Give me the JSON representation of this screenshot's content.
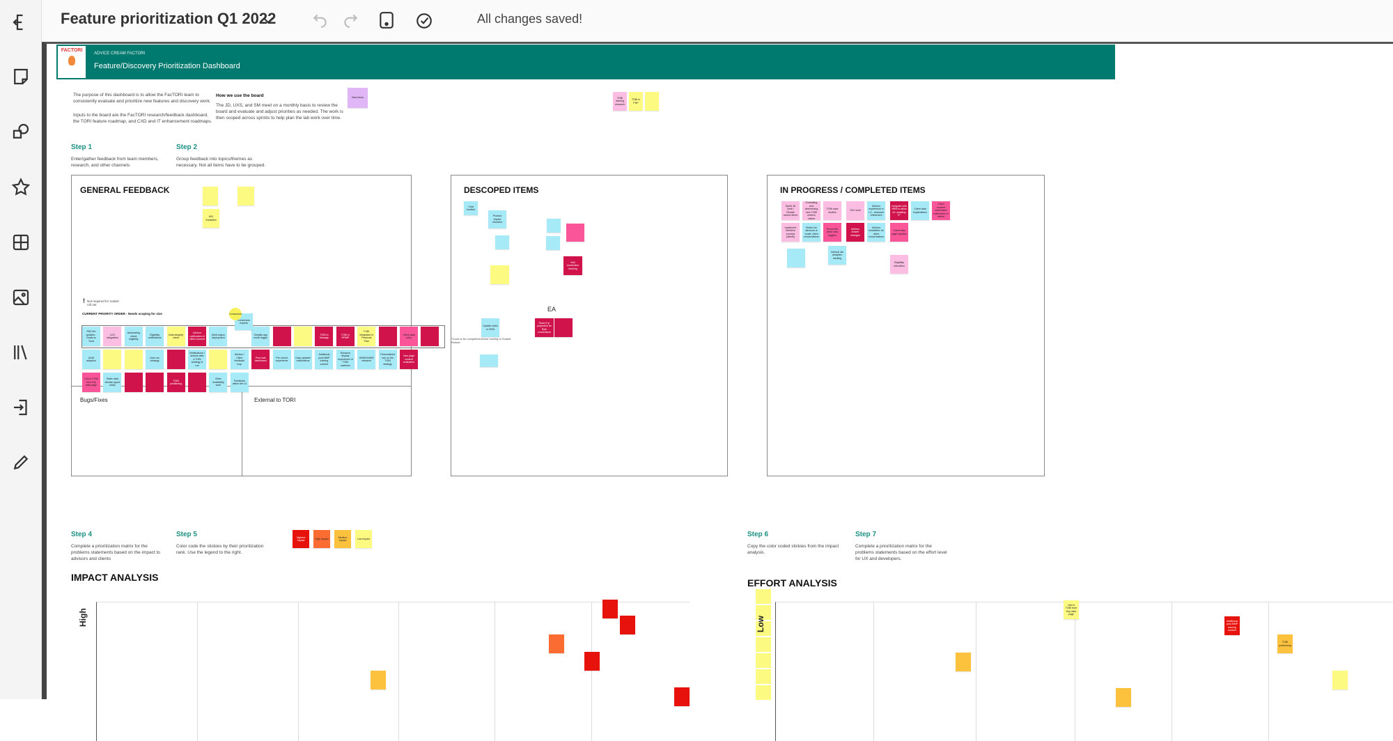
{
  "topbar": {
    "title": "Feature prioritization Q1 2022",
    "status": "All changes saved!"
  },
  "toolbar": [
    "exit-icon",
    "sticky-note-icon",
    "shapes-icon",
    "star-icon",
    "table-icon",
    "image-icon",
    "library-icon",
    "import-icon",
    "pen-icon"
  ],
  "colors": {
    "cyan": "#a6e9f7",
    "pink": "#fbbde2",
    "yellow": "#fcfa80",
    "crimson": "#d1134c",
    "hotpink": "#f95598",
    "red": "#e8120c",
    "orange": "#fa6c32",
    "amber": "#fcc13d",
    "purple": "#e0b6f7",
    "banner": "#007a6e",
    "step": "#1a8f83"
  },
  "banner": {
    "brand": "ADVICE CREAM FACTORI",
    "logo": "FACTORI",
    "title": "Feature/Discovery Prioritization Dashboard"
  },
  "intro": {
    "p1": "The purpose of this dashboard is to allow the FacTORI team to consistently evaluate and prioritize new features and discovery work.",
    "p2": "Inputs to the board are the FacTORI research/feedback dashboard, the TORI feature roadmap, and CXD and IT enhancement roadmaps.",
    "how_title": "How we use the board",
    "how_text": "The JD, UXS, and SM meet on a monthly basis to review the board and evaluate and adjust priorities as needed. The work is then scoped across sprints to help plan the lab work over time.",
    "new_items": "New items"
  },
  "top_stickies": [
    {
      "text": "TOBI training research",
      "color": "pink"
    },
    {
      "text": "TOBI in PHP",
      "color": "yellow"
    },
    {
      "text": "",
      "color": "yellow"
    }
  ],
  "steps": [
    {
      "title": "Step 1",
      "text": "Enter/gather feedback from team members, research, and other channels"
    },
    {
      "title": "Step 2",
      "text": "Group feedback into topics/themes as necessary. Not all items have to be grouped."
    },
    {
      "title": "Step 4",
      "text": "Complete a prioritization matrix for the problems statements based on the impact to advisors and clients"
    },
    {
      "title": "Step 5",
      "text": "Color code the stickies by their prioritization rank. Use the legend to the right."
    },
    {
      "title": "Step 6",
      "text": "Copy the color coded stickies from the impact analysis."
    },
    {
      "title": "Step 7",
      "text": "Complete a prioritization matrix for the problems statements based on the effort level for UX and developers."
    }
  ],
  "general": {
    "title": "GENERAL FEEDBACK",
    "not_required": "Not required for scaled roll out",
    "priority_label": "CURRENT PRIORITY ORDER - Needs scoping for size",
    "bugs": "Bugs/Fixes",
    "external": "External to TORI",
    "circle": "Conversion",
    "loose": [
      {
        "text": "",
        "color": "yellow"
      },
      {
        "text": "",
        "color": "yellow"
      },
      {
        "text": "W2I Subsidies",
        "color": "yellow"
      }
    ],
    "raised": {
      "text": "Conversion experts",
      "color": "cyan"
    },
    "rows": [
      [
        {
          "text": "PAS fee updates - Goals vs Trust",
          "color": "cyan"
        },
        {
          "text": "LCO integration",
          "color": "pink"
        },
        {
          "text": "Automating check eligibility",
          "color": "cyan"
        },
        {
          "text": "Eligibility notifications",
          "color": "cyan"
        },
        {
          "text": "Data integrity check",
          "color": "yellow"
        },
        {
          "text": "Advisor notification of client consent",
          "color": "crimson"
        },
        {
          "text": "Multi-region deployment",
          "color": "cyan"
        },
        null,
        {
          "text": "Simplify app mode toggle",
          "color": "cyan"
        },
        {
          "text": "",
          "color": "crimson"
        },
        {
          "text": "",
          "color": "yellow"
        },
        {
          "text": "TOBI in Manage",
          "color": "crimson"
        },
        {
          "text": "TOBI in SP/MP",
          "color": "crimson"
        },
        {
          "text": "FoBI integrated in Financial Plan",
          "color": "yellow"
        },
        {
          "text": "",
          "color": "crimson"
        },
        {
          "text": "Client data entry",
          "color": "hotpink"
        },
        {
          "text": "",
          "color": "crimson"
        }
      ],
      [
        {
          "text": "AUM adoption",
          "color": "cyan"
        },
        {
          "text": "",
          "color": "yellow"
        },
        {
          "text": "",
          "color": "yellow"
        },
        {
          "text": "Auto run strategy",
          "color": "cyan"
        },
        {
          "text": "",
          "color": "crimson"
        },
        {
          "text": "Notifications / actions after a TOBI strategy is run",
          "color": "cyan"
        },
        {
          "text": "",
          "color": "yellow"
        },
        {
          "text": "Advisor / Client feedback loop",
          "color": "cyan"
        },
        {
          "text": "Post sale dashboard",
          "color": "crimson"
        },
        {
          "text": "Pre-rollout experience",
          "color": "cyan"
        },
        {
          "text": "Data updated notifications",
          "color": "cyan"
        },
        {
          "text": "Additional post-MMP training content",
          "color": "cyan"
        },
        {
          "text": "Enhance display experience of TOBI matrices",
          "color": "cyan"
        },
        {
          "text": "HNW/UNHW research",
          "color": "cyan"
        },
        {
          "text": "Personalized role on the TOBI strategy",
          "color": "cyan"
        },
        {
          "text": "Intro page content evaluation",
          "color": "crimson"
        }
      ],
      [
        {
          "text": "Link to TOBI from Key data page",
          "color": "hotpink"
        },
        {
          "text": "Static data climate (sport slots)",
          "color": "cyan"
        },
        {
          "text": "",
          "color": "crimson"
        },
        {
          "text": "",
          "color": "crimson"
        },
        {
          "text": "TOBI positioning",
          "color": "crimson"
        },
        {
          "text": "",
          "color": "crimson"
        },
        {
          "text": "Other availability work",
          "color": "cyan"
        },
        {
          "text": "Feedback within the UI",
          "color": "cyan"
        }
      ]
    ]
  },
  "descoped": {
    "title": "DESCOPED ITEMS",
    "ea_label": "EA",
    "note": "*Good to be completed before moving to Scaled Rollout",
    "stickies": [
      {
        "text": "Chat function",
        "color": "cyan"
      },
      {
        "text": "Product impact research",
        "color": "cyan"
      },
      {
        "text": "",
        "color": "cyan"
      },
      {
        "text": "",
        "color": "yellow"
      },
      {
        "text": "",
        "color": "cyan"
      },
      {
        "text": "",
        "color": "cyan"
      },
      {
        "text": "",
        "color": "hotpink"
      },
      {
        "text": "Null conversion tracking",
        "color": "crimson"
      },
      {
        "text": "Show 5 yr projection for Roth conversions",
        "color": "crimson"
      },
      {
        "text": "",
        "color": "crimson"
      },
      {
        "text": "Update notes in CRM",
        "color": "cyan"
      },
      {
        "text": "",
        "color": "cyan"
      }
    ]
  },
  "in_progress": {
    "title": "IN PROGRESS / COMPLETED ITEMS",
    "stickies": [
      {
        "text": "Sprint 18 work / Rebate search items",
        "color": "pink"
      },
      {
        "text": "Evaluating and determining new TOBI metrics values",
        "color": "pink"
      },
      {
        "text": "TOBI case studies",
        "color": "pink"
      },
      {
        "text": "T&C work",
        "color": "pink"
      },
      {
        "text": "Advisor experience in LX - research refinement",
        "color": "cyan"
      },
      {
        "text": "Integrate with NRM to allow for updating IP",
        "color": "crimson"
      },
      {
        "text": "Client data explanations",
        "color": "cyan"
      },
      {
        "text": "Client consent automated notification to clients",
        "color": "hotpink"
      },
      {
        "text": "Implement Workfive surveys (clients)",
        "color": "pink"
      },
      {
        "text": "Button for advisors to 'scale' client conversations",
        "color": "cyan"
      },
      {
        "text": "Round file client view toggles",
        "color": "hotpink"
      },
      {
        "text": "Advisor drawer changes",
        "color": "crimson"
      },
      {
        "text": "Advisor newsletter for client conversations",
        "color": "cyan"
      },
      {
        "text": "Client data page updates",
        "color": "hotpink"
      },
      {
        "text": "",
        "color": "cyan"
      },
      {
        "text": "Internal lab analytics tracking",
        "color": "cyan"
      },
      {
        "text": "Eligibility education",
        "color": "pink"
      }
    ]
  },
  "legend": [
    {
      "text": "Highest Impact",
      "color": "red"
    },
    {
      "text": "High Impact",
      "color": "orange"
    },
    {
      "text": "Medium Impact",
      "color": "amber"
    },
    {
      "text": "Low Impact",
      "color": "yellow"
    }
  ],
  "impact": {
    "title": "IMPACT ANALYSIS",
    "axis": "High",
    "stickies": [
      {
        "text": "",
        "color": "red"
      },
      {
        "text": "",
        "color": "red"
      },
      {
        "text": "",
        "color": "orange"
      },
      {
        "text": "",
        "color": "red"
      },
      {
        "text": "",
        "color": "amber"
      },
      {
        "text": "",
        "color": "red"
      }
    ]
  },
  "effort": {
    "title": "EFFORT ANALYSIS",
    "axis": "Low",
    "stickies": [
      {
        "text": "Link to TOBI from Key data page",
        "color": "yellow"
      },
      {
        "text": "",
        "color": "amber"
      },
      {
        "text": "Additional post-MMP training content",
        "color": "red"
      },
      {
        "text": "TOBI positioning",
        "color": "amber"
      },
      {
        "text": "",
        "color": "yellow"
      },
      {
        "text": "",
        "color": "amber"
      }
    ]
  }
}
